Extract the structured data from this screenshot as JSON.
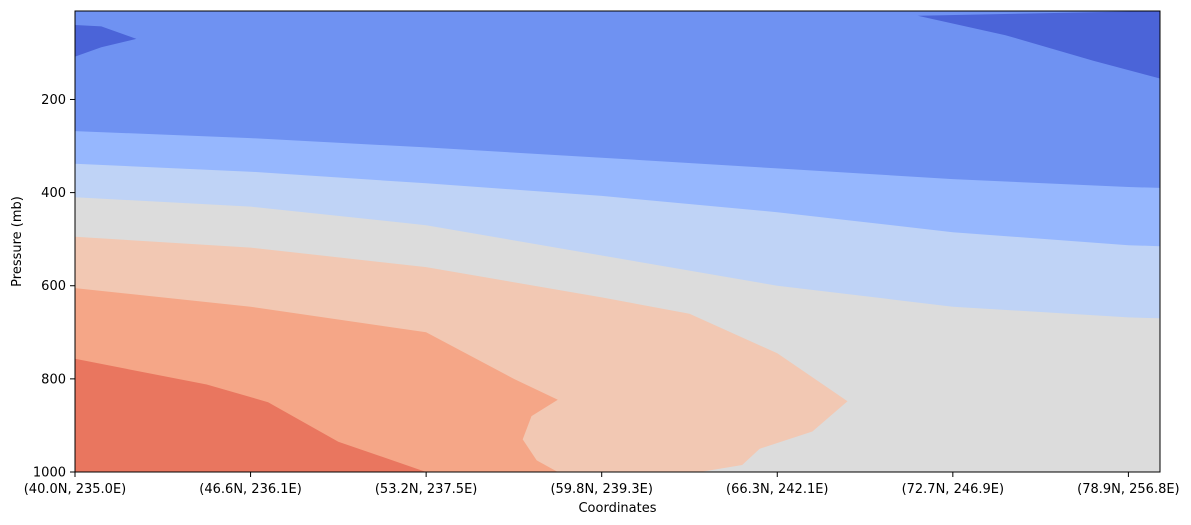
{
  "chart_data": {
    "type": "contourf",
    "title": "",
    "xlabel": "Coordinates",
    "ylabel": "Pressure (mb)",
    "x_tick_labels": [
      "(40.0N, 235.0E)",
      "(46.6N, 236.1E)",
      "(53.2N, 237.5E)",
      "(59.8N, 239.3E)",
      "(66.3N, 242.1E)",
      "(72.7N, 246.9E)",
      "(78.9N, 256.8E)"
    ],
    "x_ticks": [
      0,
      1,
      2,
      3,
      4,
      5,
      6
    ],
    "xlim": [
      0,
      6.18
    ],
    "y_ticks": [
      200,
      400,
      600,
      800,
      1000
    ],
    "y_tick_labels": [
      "200",
      "400",
      "600",
      "800",
      "1000"
    ],
    "ylim": [
      1000,
      10
    ],
    "y_inverted": true,
    "colormap": "coolwarm",
    "levels": [
      {
        "name": "level-1",
        "color": "#4b64d8"
      },
      {
        "name": "level-2",
        "color": "#6f92f2"
      },
      {
        "name": "level-3",
        "color": "#96b7fe"
      },
      {
        "name": "level-4",
        "color": "#bfd3f6"
      },
      {
        "name": "level-5",
        "color": "#dcdcdc"
      },
      {
        "name": "level-6",
        "color": "#f2c8b3"
      },
      {
        "name": "level-7",
        "color": "#f5a687"
      },
      {
        "name": "level-8",
        "color": "#e9765f"
      }
    ],
    "contour_boundaries": [
      {
        "lower_level": "level-2",
        "upper_level": "level-3",
        "x": [
          0,
          1,
          2,
          3,
          4,
          5,
          6,
          6.18
        ],
        "pressure": [
          268,
          283,
          303,
          325,
          348,
          371,
          388,
          390
        ]
      },
      {
        "lower_level": "level-3",
        "upper_level": "level-4",
        "x": [
          0,
          1,
          2,
          3,
          4,
          5,
          6,
          6.18
        ],
        "pressure": [
          338,
          355,
          380,
          407,
          442,
          485,
          513,
          515
        ]
      },
      {
        "lower_level": "level-4",
        "upper_level": "level-5",
        "x": [
          0,
          1,
          2,
          3,
          4,
          5,
          6,
          6.18
        ],
        "pressure": [
          410,
          430,
          470,
          535,
          600,
          645,
          668,
          670
        ]
      },
      {
        "lower_level": "level-5",
        "upper_level": "level-6",
        "x": [
          0,
          1,
          2,
          3,
          3.5,
          4,
          4.4,
          4.2,
          3.9,
          3.8,
          3.56
        ],
        "pressure": [
          495,
          518,
          560,
          625,
          660,
          745,
          848,
          913,
          950,
          985,
          1000
        ]
      },
      {
        "lower_level": "level-6",
        "upper_level": "level-7",
        "x": [
          0,
          1,
          2,
          2.5,
          2.75,
          2.6,
          2.55,
          2.63,
          2.75
        ],
        "pressure": [
          605,
          645,
          700,
          800,
          845,
          880,
          930,
          975,
          1000
        ]
      },
      {
        "lower_level": "level-7",
        "upper_level": "level-8",
        "x": [
          0,
          0.75,
          1.1,
          1.5,
          2.0
        ],
        "pressure": [
          757,
          812,
          850,
          935,
          1000
        ]
      }
    ],
    "low_regions": [
      {
        "level": "level-1",
        "location": "top-left",
        "x": [
          0,
          0.15,
          0.35,
          0.15,
          0
        ],
        "pressure": [
          40,
          43,
          70,
          88,
          108
        ]
      },
      {
        "level": "level-1",
        "location": "top-right",
        "x": [
          4.8,
          5.3,
          5.8,
          6.18,
          6.18
        ],
        "pressure": [
          20,
          62,
          117,
          155,
          10
        ]
      }
    ]
  }
}
